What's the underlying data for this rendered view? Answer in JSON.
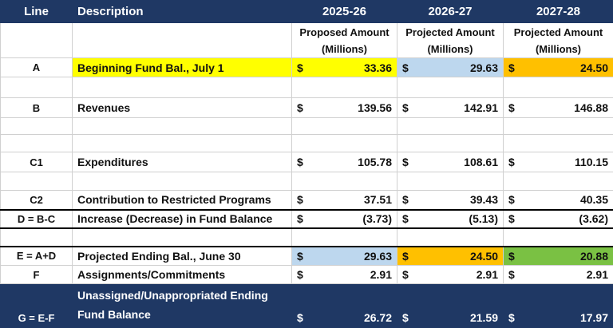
{
  "header": {
    "line": "Line",
    "description": "Description",
    "years": [
      "2025-26",
      "2026-27",
      "2027-28"
    ],
    "subheaders": [
      [
        "Proposed Amount",
        "(Millions)"
      ],
      [
        "Projected Amount",
        "(Millions)"
      ],
      [
        "Projected Amount",
        "(Millions)"
      ]
    ]
  },
  "rows": [
    {
      "line": "A",
      "description": "Beginning Fund Bal., July 1",
      "cells": [
        {
          "symbol": "$",
          "amount": "33.36"
        },
        {
          "symbol": "$",
          "amount": "29.63"
        },
        {
          "symbol": "$",
          "amount": "24.50"
        }
      ]
    },
    {
      "line": "B",
      "description": "Revenues",
      "cells": [
        {
          "symbol": "$",
          "amount": "139.56"
        },
        {
          "symbol": "$",
          "amount": "142.91"
        },
        {
          "symbol": "$",
          "amount": "146.88"
        }
      ]
    },
    {
      "line": "C1",
      "description": "Expenditures",
      "cells": [
        {
          "symbol": "$",
          "amount": "105.78"
        },
        {
          "symbol": "$",
          "amount": "108.61"
        },
        {
          "symbol": "$",
          "amount": "110.15"
        }
      ]
    },
    {
      "line": "C2",
      "description": "Contribution to Restricted Programs",
      "cells": [
        {
          "symbol": "$",
          "amount": "37.51"
        },
        {
          "symbol": "$",
          "amount": "39.43"
        },
        {
          "symbol": "$",
          "amount": "40.35"
        }
      ]
    },
    {
      "line": "D = B-C",
      "description": "Increase (Decrease) in Fund Balance",
      "cells": [
        {
          "symbol": "$",
          "amount": "(3.73)"
        },
        {
          "symbol": "$",
          "amount": "(5.13)"
        },
        {
          "symbol": "$",
          "amount": "(3.62)"
        }
      ]
    },
    {
      "line": "E = A+D",
      "description": "Projected Ending Bal., June 30",
      "cells": [
        {
          "symbol": "$",
          "amount": "29.63"
        },
        {
          "symbol": "$",
          "amount": "24.50"
        },
        {
          "symbol": "$",
          "amount": "20.88"
        }
      ]
    },
    {
      "line": "F",
      "description": "Assignments/Commitments",
      "cells": [
        {
          "symbol": "$",
          "amount": "2.91"
        },
        {
          "symbol": "$",
          "amount": "2.91"
        },
        {
          "symbol": "$",
          "amount": "2.91"
        }
      ]
    },
    {
      "line": "G = E-F",
      "description": [
        "Unassigned/Unappropriated Ending",
        "Fund Balance"
      ],
      "cells": [
        {
          "symbol": "$",
          "amount": "26.72"
        },
        {
          "symbol": "$",
          "amount": "21.59"
        },
        {
          "symbol": "$",
          "amount": "17.97"
        }
      ]
    }
  ]
}
